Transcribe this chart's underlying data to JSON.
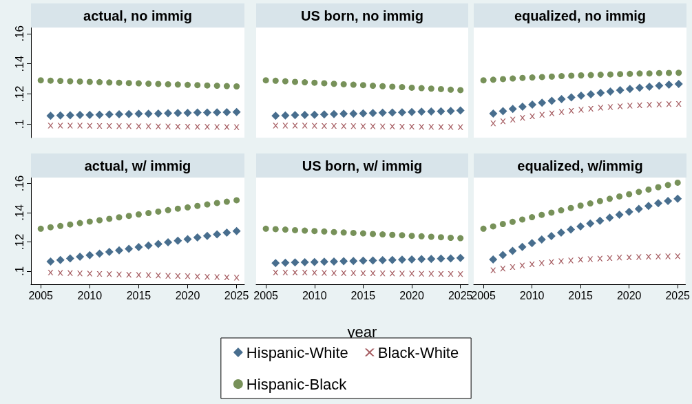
{
  "chart_data": [
    {
      "type": "scatter",
      "title": "actual, no immig",
      "tick_labels": "y",
      "legend": "bottom",
      "grid": false,
      "xlim": [
        2004,
        2025.8
      ],
      "xticks": [
        2005,
        2010,
        2015,
        2020,
        2025
      ],
      "ylim": [
        0.091,
        0.164
      ],
      "yticks": [
        {
          "value": 0.1,
          "label": ".1"
        },
        {
          "value": 0.12,
          "label": ".12"
        },
        {
          "value": 0.14,
          "label": ".14"
        },
        {
          "value": 0.16,
          "label": ".16"
        }
      ],
      "series": [
        {
          "name": "Hispanic-White",
          "color": "#1a4a72",
          "marker": "diamond",
          "x": [
            2006,
            2007,
            2008,
            2009,
            2010,
            2011,
            2012,
            2013,
            2014,
            2015,
            2016,
            2017,
            2018,
            2019,
            2020,
            2021,
            2022,
            2023,
            2024,
            2025
          ],
          "values": [
            0.1055,
            0.1057,
            0.1058,
            0.106,
            0.1061,
            0.1062,
            0.1064,
            0.1065,
            0.1066,
            0.1068,
            0.1069,
            0.107,
            0.1072,
            0.1073,
            0.1074,
            0.1076,
            0.1077,
            0.1078,
            0.1079,
            0.108
          ]
        },
        {
          "name": "Black-White",
          "color": "#90353b",
          "marker": "cross",
          "x": [
            2006,
            2007,
            2008,
            2009,
            2010,
            2011,
            2012,
            2013,
            2014,
            2015,
            2016,
            2017,
            2018,
            2019,
            2020,
            2021,
            2022,
            2023,
            2024,
            2025
          ],
          "values": [
            0.099,
            0.099,
            0.099,
            0.099,
            0.0989,
            0.0988,
            0.0987,
            0.0986,
            0.0986,
            0.0985,
            0.0985,
            0.0984,
            0.0984,
            0.0983,
            0.0983,
            0.0982,
            0.0982,
            0.0981,
            0.0981,
            0.098
          ]
        },
        {
          "name": "Hispanic-Black",
          "color": "#55752f",
          "marker": "circle",
          "x": [
            2005,
            2006,
            2007,
            2008,
            2009,
            2010,
            2011,
            2012,
            2013,
            2014,
            2015,
            2016,
            2017,
            2018,
            2019,
            2020,
            2021,
            2022,
            2023,
            2024,
            2025
          ],
          "values": [
            0.129,
            0.1288,
            0.1286,
            0.1284,
            0.1282,
            0.128,
            0.1278,
            0.1276,
            0.1274,
            0.1272,
            0.127,
            0.1268,
            0.1266,
            0.1264,
            0.1262,
            0.126,
            0.1258,
            0.1256,
            0.1254,
            0.1252,
            0.125
          ]
        }
      ]
    },
    {
      "type": "scatter",
      "title": "US born, no immig",
      "tick_labels": false,
      "legend": "bottom",
      "grid": false,
      "xlim": [
        2004,
        2025.8
      ],
      "xticks": [
        2005,
        2010,
        2015,
        2020,
        2025
      ],
      "ylim": [
        0.091,
        0.164
      ],
      "yticks": [
        {
          "value": 0.1,
          "label": ".1"
        },
        {
          "value": 0.12,
          "label": ".12"
        },
        {
          "value": 0.14,
          "label": ".14"
        },
        {
          "value": 0.16,
          "label": ".16"
        }
      ],
      "series": [
        {
          "name": "Hispanic-White",
          "color": "#1a4a72",
          "marker": "diamond",
          "x": [
            2006,
            2007,
            2008,
            2009,
            2010,
            2011,
            2012,
            2013,
            2014,
            2015,
            2016,
            2017,
            2018,
            2019,
            2020,
            2021,
            2022,
            2023,
            2024,
            2025
          ],
          "values": [
            0.1055,
            0.1057,
            0.1059,
            0.1061,
            0.1062,
            0.1064,
            0.1066,
            0.1068,
            0.1069,
            0.1071,
            0.1073,
            0.1075,
            0.1076,
            0.1078,
            0.108,
            0.1082,
            0.1083,
            0.1085,
            0.1087,
            0.109
          ]
        },
        {
          "name": "Black-White",
          "color": "#90353b",
          "marker": "cross",
          "x": [
            2006,
            2007,
            2008,
            2009,
            2010,
            2011,
            2012,
            2013,
            2014,
            2015,
            2016,
            2017,
            2018,
            2019,
            2020,
            2021,
            2022,
            2023,
            2024,
            2025
          ],
          "values": [
            0.099,
            0.099,
            0.099,
            0.099,
            0.0989,
            0.0988,
            0.0987,
            0.0986,
            0.0986,
            0.0985,
            0.0985,
            0.0984,
            0.0984,
            0.0983,
            0.0983,
            0.0982,
            0.0982,
            0.0981,
            0.0981,
            0.098
          ]
        },
        {
          "name": "Hispanic-Black",
          "color": "#55752f",
          "marker": "circle",
          "x": [
            2005,
            2006,
            2007,
            2008,
            2009,
            2010,
            2011,
            2012,
            2013,
            2014,
            2015,
            2016,
            2017,
            2018,
            2019,
            2020,
            2021,
            2022,
            2023,
            2024,
            2025
          ],
          "values": [
            0.129,
            0.1287,
            0.1284,
            0.128,
            0.1277,
            0.1274,
            0.1271,
            0.1267,
            0.1264,
            0.1261,
            0.1258,
            0.1254,
            0.1251,
            0.1248,
            0.1245,
            0.1241,
            0.1238,
            0.1235,
            0.1232,
            0.1228,
            0.1225
          ]
        }
      ]
    },
    {
      "type": "scatter",
      "title": "equalized, no immig",
      "tick_labels": false,
      "legend": "bottom",
      "grid": false,
      "xlim": [
        2004,
        2025.8
      ],
      "xticks": [
        2005,
        2010,
        2015,
        2020,
        2025
      ],
      "ylim": [
        0.091,
        0.164
      ],
      "yticks": [
        {
          "value": 0.1,
          "label": ".1"
        },
        {
          "value": 0.12,
          "label": ".12"
        },
        {
          "value": 0.14,
          "label": ".14"
        },
        {
          "value": 0.16,
          "label": ".16"
        }
      ],
      "series": [
        {
          "name": "Hispanic-White",
          "color": "#1a4a72",
          "marker": "diamond",
          "x": [
            2006,
            2007,
            2008,
            2009,
            2010,
            2011,
            2012,
            2013,
            2014,
            2015,
            2016,
            2017,
            2018,
            2019,
            2020,
            2021,
            2022,
            2023,
            2024,
            2025
          ],
          "values": [
            0.107,
            0.1086,
            0.1101,
            0.1115,
            0.1129,
            0.1142,
            0.1154,
            0.1166,
            0.1177,
            0.1188,
            0.1198,
            0.1207,
            0.1216,
            0.1225,
            0.1233,
            0.1241,
            0.1248,
            0.1255,
            0.1261,
            0.1266
          ]
        },
        {
          "name": "Black-White",
          "color": "#90353b",
          "marker": "cross",
          "x": [
            2006,
            2007,
            2008,
            2009,
            2010,
            2011,
            2012,
            2013,
            2014,
            2015,
            2016,
            2017,
            2018,
            2019,
            2020,
            2021,
            2022,
            2023,
            2024,
            2025
          ],
          "values": [
            0.1005,
            0.1018,
            0.103,
            0.1041,
            0.1052,
            0.1062,
            0.1071,
            0.108,
            0.1088,
            0.1095,
            0.1102,
            0.1108,
            0.1113,
            0.1118,
            0.1122,
            0.1125,
            0.1128,
            0.113,
            0.1132,
            0.1133
          ]
        },
        {
          "name": "Hispanic-Black",
          "color": "#55752f",
          "marker": "circle",
          "x": [
            2005,
            2006,
            2007,
            2008,
            2009,
            2010,
            2011,
            2012,
            2013,
            2014,
            2015,
            2016,
            2017,
            2018,
            2019,
            2020,
            2021,
            2022,
            2023,
            2024,
            2025
          ],
          "values": [
            0.129,
            0.1294,
            0.1298,
            0.1302,
            0.1306,
            0.1309,
            0.1312,
            0.1315,
            0.1318,
            0.1321,
            0.1323,
            0.1325,
            0.1327,
            0.1329,
            0.1331,
            0.1333,
            0.1335,
            0.1336,
            0.1338,
            0.1339,
            0.134
          ]
        }
      ]
    },
    {
      "type": "scatter",
      "title": "actual, w/ immig",
      "legend": "bottom",
      "grid": false,
      "xlim": [
        2004,
        2025.8
      ],
      "xticks": [
        2005,
        2010,
        2015,
        2020,
        2025
      ],
      "ylim": [
        0.091,
        0.164
      ],
      "yticks": [
        {
          "value": 0.1,
          "label": ".1"
        },
        {
          "value": 0.12,
          "label": ".12"
        },
        {
          "value": 0.14,
          "label": ".14"
        },
        {
          "value": 0.16,
          "label": ".16"
        }
      ],
      "series": [
        {
          "name": "Hispanic-White",
          "color": "#1a4a72",
          "marker": "diamond",
          "x": [
            2006,
            2007,
            2008,
            2009,
            2010,
            2011,
            2012,
            2013,
            2014,
            2015,
            2016,
            2017,
            2018,
            2019,
            2020,
            2021,
            2022,
            2023,
            2024,
            2025
          ],
          "values": [
            0.1065,
            0.1076,
            0.1087,
            0.1098,
            0.1109,
            0.112,
            0.1131,
            0.1142,
            0.1153,
            0.1164,
            0.1175,
            0.1186,
            0.1197,
            0.1208,
            0.1219,
            0.123,
            0.1241,
            0.1252,
            0.1263,
            0.1274
          ]
        },
        {
          "name": "Black-White",
          "color": "#90353b",
          "marker": "cross",
          "x": [
            2006,
            2007,
            2008,
            2009,
            2010,
            2011,
            2012,
            2013,
            2014,
            2015,
            2016,
            2017,
            2018,
            2019,
            2020,
            2021,
            2022,
            2023,
            2024,
            2025
          ],
          "values": [
            0.099,
            0.0988,
            0.0986,
            0.0984,
            0.0983,
            0.0981,
            0.0979,
            0.0977,
            0.0975,
            0.0974,
            0.0972,
            0.097,
            0.0968,
            0.0966,
            0.0965,
            0.0963,
            0.0961,
            0.0959,
            0.0957,
            0.0955
          ]
        },
        {
          "name": "Hispanic-Black",
          "color": "#55752f",
          "marker": "circle",
          "x": [
            2005,
            2006,
            2007,
            2008,
            2009,
            2010,
            2011,
            2012,
            2013,
            2014,
            2015,
            2016,
            2017,
            2018,
            2019,
            2020,
            2021,
            2022,
            2023,
            2024,
            2025
          ],
          "values": [
            0.129,
            0.13,
            0.1309,
            0.1319,
            0.1329,
            0.1339,
            0.1348,
            0.1358,
            0.1368,
            0.1378,
            0.1388,
            0.1397,
            0.1407,
            0.1417,
            0.1427,
            0.1436,
            0.1446,
            0.1456,
            0.1466,
            0.1475,
            0.1485
          ]
        }
      ]
    },
    {
      "type": "scatter",
      "title": "US born, w/ immig",
      "xlabel": "year",
      "tick_labels": "x",
      "legend": "bottom",
      "grid": false,
      "xlim": [
        2004,
        2025.8
      ],
      "xticks": [
        2005,
        2010,
        2015,
        2020,
        2025
      ],
      "ylim": [
        0.091,
        0.164
      ],
      "yticks": [
        {
          "value": 0.1,
          "label": ".1"
        },
        {
          "value": 0.12,
          "label": ".12"
        },
        {
          "value": 0.14,
          "label": ".14"
        },
        {
          "value": 0.16,
          "label": ".16"
        }
      ],
      "series": [
        {
          "name": "Hispanic-White",
          "color": "#1a4a72",
          "marker": "diamond",
          "x": [
            2006,
            2007,
            2008,
            2009,
            2010,
            2011,
            2012,
            2013,
            2014,
            2015,
            2016,
            2017,
            2018,
            2019,
            2020,
            2021,
            2022,
            2023,
            2024,
            2025
          ],
          "values": [
            0.1055,
            0.1057,
            0.1059,
            0.1061,
            0.1062,
            0.1064,
            0.1066,
            0.1068,
            0.1069,
            0.1071,
            0.1073,
            0.1075,
            0.1076,
            0.1078,
            0.108,
            0.1082,
            0.1083,
            0.1085,
            0.1087,
            0.109
          ]
        },
        {
          "name": "Black-White",
          "color": "#90353b",
          "marker": "cross",
          "x": [
            2006,
            2007,
            2008,
            2009,
            2010,
            2011,
            2012,
            2013,
            2014,
            2015,
            2016,
            2017,
            2018,
            2019,
            2020,
            2021,
            2022,
            2023,
            2024,
            2025
          ],
          "values": [
            0.099,
            0.099,
            0.099,
            0.099,
            0.0989,
            0.0988,
            0.0987,
            0.0986,
            0.0986,
            0.0985,
            0.0985,
            0.0984,
            0.0984,
            0.0983,
            0.0983,
            0.0982,
            0.0982,
            0.0981,
            0.0981,
            0.098
          ]
        },
        {
          "name": "Hispanic-Black",
          "color": "#55752f",
          "marker": "circle",
          "x": [
            2005,
            2006,
            2007,
            2008,
            2009,
            2010,
            2011,
            2012,
            2013,
            2014,
            2015,
            2016,
            2017,
            2018,
            2019,
            2020,
            2021,
            2022,
            2023,
            2024,
            2025
          ],
          "values": [
            0.129,
            0.1287,
            0.1284,
            0.128,
            0.1277,
            0.1274,
            0.1271,
            0.1267,
            0.1264,
            0.1261,
            0.1258,
            0.1254,
            0.1251,
            0.1248,
            0.1245,
            0.1241,
            0.1238,
            0.1235,
            0.1232,
            0.1228,
            0.1225
          ]
        }
      ]
    },
    {
      "type": "scatter",
      "title": "equalized, w/immig",
      "tick_labels": "x",
      "legend": "bottom",
      "grid": false,
      "xlim": [
        2004,
        2025.8
      ],
      "xticks": [
        2005,
        2010,
        2015,
        2020,
        2025
      ],
      "ylim": [
        0.091,
        0.164
      ],
      "yticks": [
        {
          "value": 0.1,
          "label": ".1"
        },
        {
          "value": 0.12,
          "label": ".12"
        },
        {
          "value": 0.14,
          "label": ".14"
        },
        {
          "value": 0.16,
          "label": ".16"
        }
      ],
      "series": [
        {
          "name": "Hispanic-White",
          "color": "#1a4a72",
          "marker": "diamond",
          "x": [
            2006,
            2007,
            2008,
            2009,
            2010,
            2011,
            2012,
            2013,
            2014,
            2015,
            2016,
            2017,
            2018,
            2019,
            2020,
            2021,
            2022,
            2023,
            2024,
            2025
          ],
          "values": [
            0.108,
            0.111,
            0.1138,
            0.1165,
            0.1191,
            0.1216,
            0.124,
            0.1263,
            0.1285,
            0.1306,
            0.1326,
            0.1345,
            0.1366,
            0.1386,
            0.1406,
            0.1426,
            0.1446,
            0.1464,
            0.148,
            0.1495
          ]
        },
        {
          "name": "Black-White",
          "color": "#90353b",
          "marker": "cross",
          "x": [
            2006,
            2007,
            2008,
            2009,
            2010,
            2011,
            2012,
            2013,
            2014,
            2015,
            2016,
            2017,
            2018,
            2019,
            2020,
            2021,
            2022,
            2023,
            2024,
            2025
          ],
          "values": [
            0.1005,
            0.1017,
            0.1028,
            0.1038,
            0.1047,
            0.1055,
            0.1062,
            0.1068,
            0.1073,
            0.1078,
            0.1082,
            0.1086,
            0.1089,
            0.1092,
            0.1094,
            0.1096,
            0.1098,
            0.11,
            0.1101,
            0.1102
          ]
        },
        {
          "name": "Hispanic-Black",
          "color": "#55752f",
          "marker": "circle",
          "x": [
            2005,
            2006,
            2007,
            2008,
            2009,
            2010,
            2011,
            2012,
            2013,
            2014,
            2015,
            2016,
            2017,
            2018,
            2019,
            2020,
            2021,
            2022,
            2023,
            2024,
            2025
          ],
          "values": [
            0.129,
            0.1306,
            0.1322,
            0.1337,
            0.1353,
            0.1369,
            0.1385,
            0.14,
            0.1416,
            0.1432,
            0.1448,
            0.1463,
            0.1479,
            0.1495,
            0.1511,
            0.1526,
            0.1542,
            0.1558,
            0.1574,
            0.1589,
            0.1605
          ]
        }
      ]
    }
  ]
}
